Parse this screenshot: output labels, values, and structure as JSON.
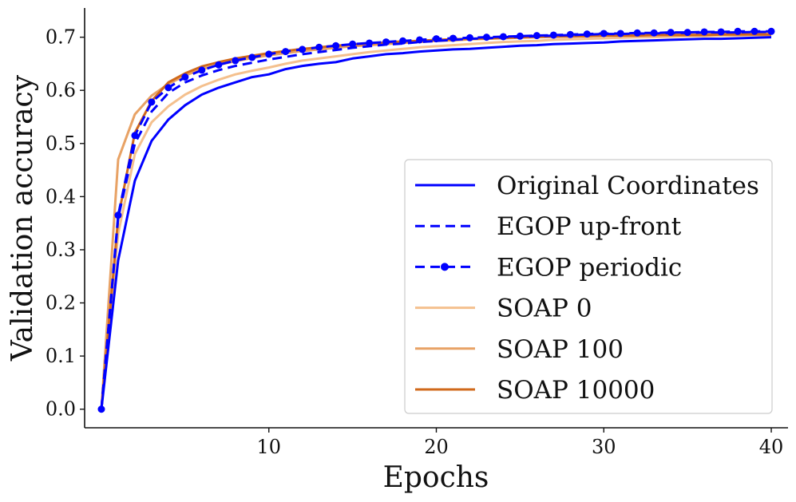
{
  "chart_data": {
    "type": "line",
    "title": "",
    "xlabel": "Epochs",
    "ylabel": "Validation accuracy",
    "xlim": [
      -1,
      41
    ],
    "ylim": [
      -0.035,
      0.755
    ],
    "xticks": [
      10,
      20,
      30,
      40
    ],
    "yticks": [
      0.0,
      0.1,
      0.2,
      0.3,
      0.4,
      0.5,
      0.6,
      0.7
    ],
    "xtick_labels": [
      "10",
      "20",
      "30",
      "40"
    ],
    "ytick_labels": [
      "0.0",
      "0.1",
      "0.2",
      "0.3",
      "0.4",
      "0.5",
      "0.6",
      "0.7"
    ],
    "grid": false,
    "legend_position": "lower-right",
    "x": [
      0,
      1,
      2,
      3,
      4,
      5,
      6,
      7,
      8,
      9,
      10,
      11,
      12,
      13,
      14,
      15,
      16,
      17,
      18,
      19,
      20,
      21,
      22,
      23,
      24,
      25,
      26,
      27,
      28,
      29,
      30,
      31,
      32,
      33,
      34,
      35,
      36,
      37,
      38,
      39,
      40
    ],
    "series": [
      {
        "name": "Original Coordinates",
        "color": "#0000ff",
        "style": "solid",
        "values": [
          0.0,
          0.28,
          0.43,
          0.505,
          0.545,
          0.572,
          0.592,
          0.605,
          0.615,
          0.625,
          0.63,
          0.64,
          0.646,
          0.65,
          0.653,
          0.66,
          0.664,
          0.668,
          0.67,
          0.673,
          0.675,
          0.677,
          0.678,
          0.68,
          0.682,
          0.684,
          0.685,
          0.687,
          0.688,
          0.689,
          0.69,
          0.692,
          0.693,
          0.694,
          0.695,
          0.696,
          0.697,
          0.697,
          0.698,
          0.699,
          0.7
        ]
      },
      {
        "name": "EGOP up-front",
        "color": "#0000ff",
        "style": "dashed",
        "values": [
          0.0,
          0.36,
          0.5,
          0.56,
          0.595,
          0.615,
          0.628,
          0.638,
          0.646,
          0.652,
          0.658,
          0.663,
          0.668,
          0.672,
          0.676,
          0.68,
          0.683,
          0.686,
          0.688,
          0.691,
          0.693,
          0.695,
          0.697,
          0.698,
          0.7,
          0.701,
          0.702,
          0.703,
          0.704,
          0.705,
          0.706,
          0.706,
          0.707,
          0.707,
          0.708,
          0.708,
          0.709,
          0.709,
          0.709,
          0.71,
          0.71
        ]
      },
      {
        "name": "EGOP periodic",
        "color": "#0000ff",
        "style": "dashed-dot",
        "values": [
          0.0,
          0.365,
          0.515,
          0.578,
          0.605,
          0.625,
          0.638,
          0.648,
          0.656,
          0.662,
          0.668,
          0.673,
          0.677,
          0.681,
          0.684,
          0.687,
          0.689,
          0.691,
          0.693,
          0.695,
          0.697,
          0.698,
          0.699,
          0.7,
          0.701,
          0.702,
          0.703,
          0.704,
          0.705,
          0.706,
          0.707,
          0.707,
          0.708,
          0.708,
          0.709,
          0.709,
          0.71,
          0.71,
          0.711,
          0.711,
          0.711
        ]
      },
      {
        "name": "SOAP 0",
        "color": "#f4c08e",
        "style": "solid",
        "values": [
          0.0,
          0.33,
          0.48,
          0.54,
          0.57,
          0.592,
          0.608,
          0.62,
          0.63,
          0.637,
          0.643,
          0.65,
          0.656,
          0.66,
          0.664,
          0.668,
          0.672,
          0.675,
          0.678,
          0.681,
          0.683,
          0.685,
          0.687,
          0.689,
          0.691,
          0.692,
          0.693,
          0.695,
          0.696,
          0.697,
          0.698,
          0.699,
          0.7,
          0.7,
          0.701,
          0.702,
          0.702,
          0.703,
          0.703,
          0.704,
          0.704
        ]
      },
      {
        "name": "SOAP 100",
        "color": "#e8a265",
        "style": "solid",
        "values": [
          0.0,
          0.47,
          0.555,
          0.59,
          0.612,
          0.628,
          0.64,
          0.648,
          0.655,
          0.661,
          0.666,
          0.67,
          0.674,
          0.677,
          0.68,
          0.683,
          0.685,
          0.687,
          0.689,
          0.691,
          0.693,
          0.694,
          0.696,
          0.697,
          0.698,
          0.699,
          0.7,
          0.701,
          0.701,
          0.702,
          0.703,
          0.703,
          0.704,
          0.704,
          0.705,
          0.705,
          0.705,
          0.706,
          0.706,
          0.706,
          0.707
        ]
      },
      {
        "name": "SOAP 10000",
        "color": "#d0691b",
        "style": "solid",
        "values": [
          0.0,
          0.36,
          0.52,
          0.58,
          0.615,
          0.632,
          0.645,
          0.653,
          0.66,
          0.665,
          0.67,
          0.674,
          0.678,
          0.681,
          0.684,
          0.686,
          0.688,
          0.69,
          0.692,
          0.693,
          0.695,
          0.696,
          0.697,
          0.698,
          0.699,
          0.7,
          0.701,
          0.701,
          0.702,
          0.702,
          0.703,
          0.703,
          0.703,
          0.704,
          0.704,
          0.704,
          0.704,
          0.705,
          0.705,
          0.705,
          0.705
        ]
      }
    ]
  }
}
